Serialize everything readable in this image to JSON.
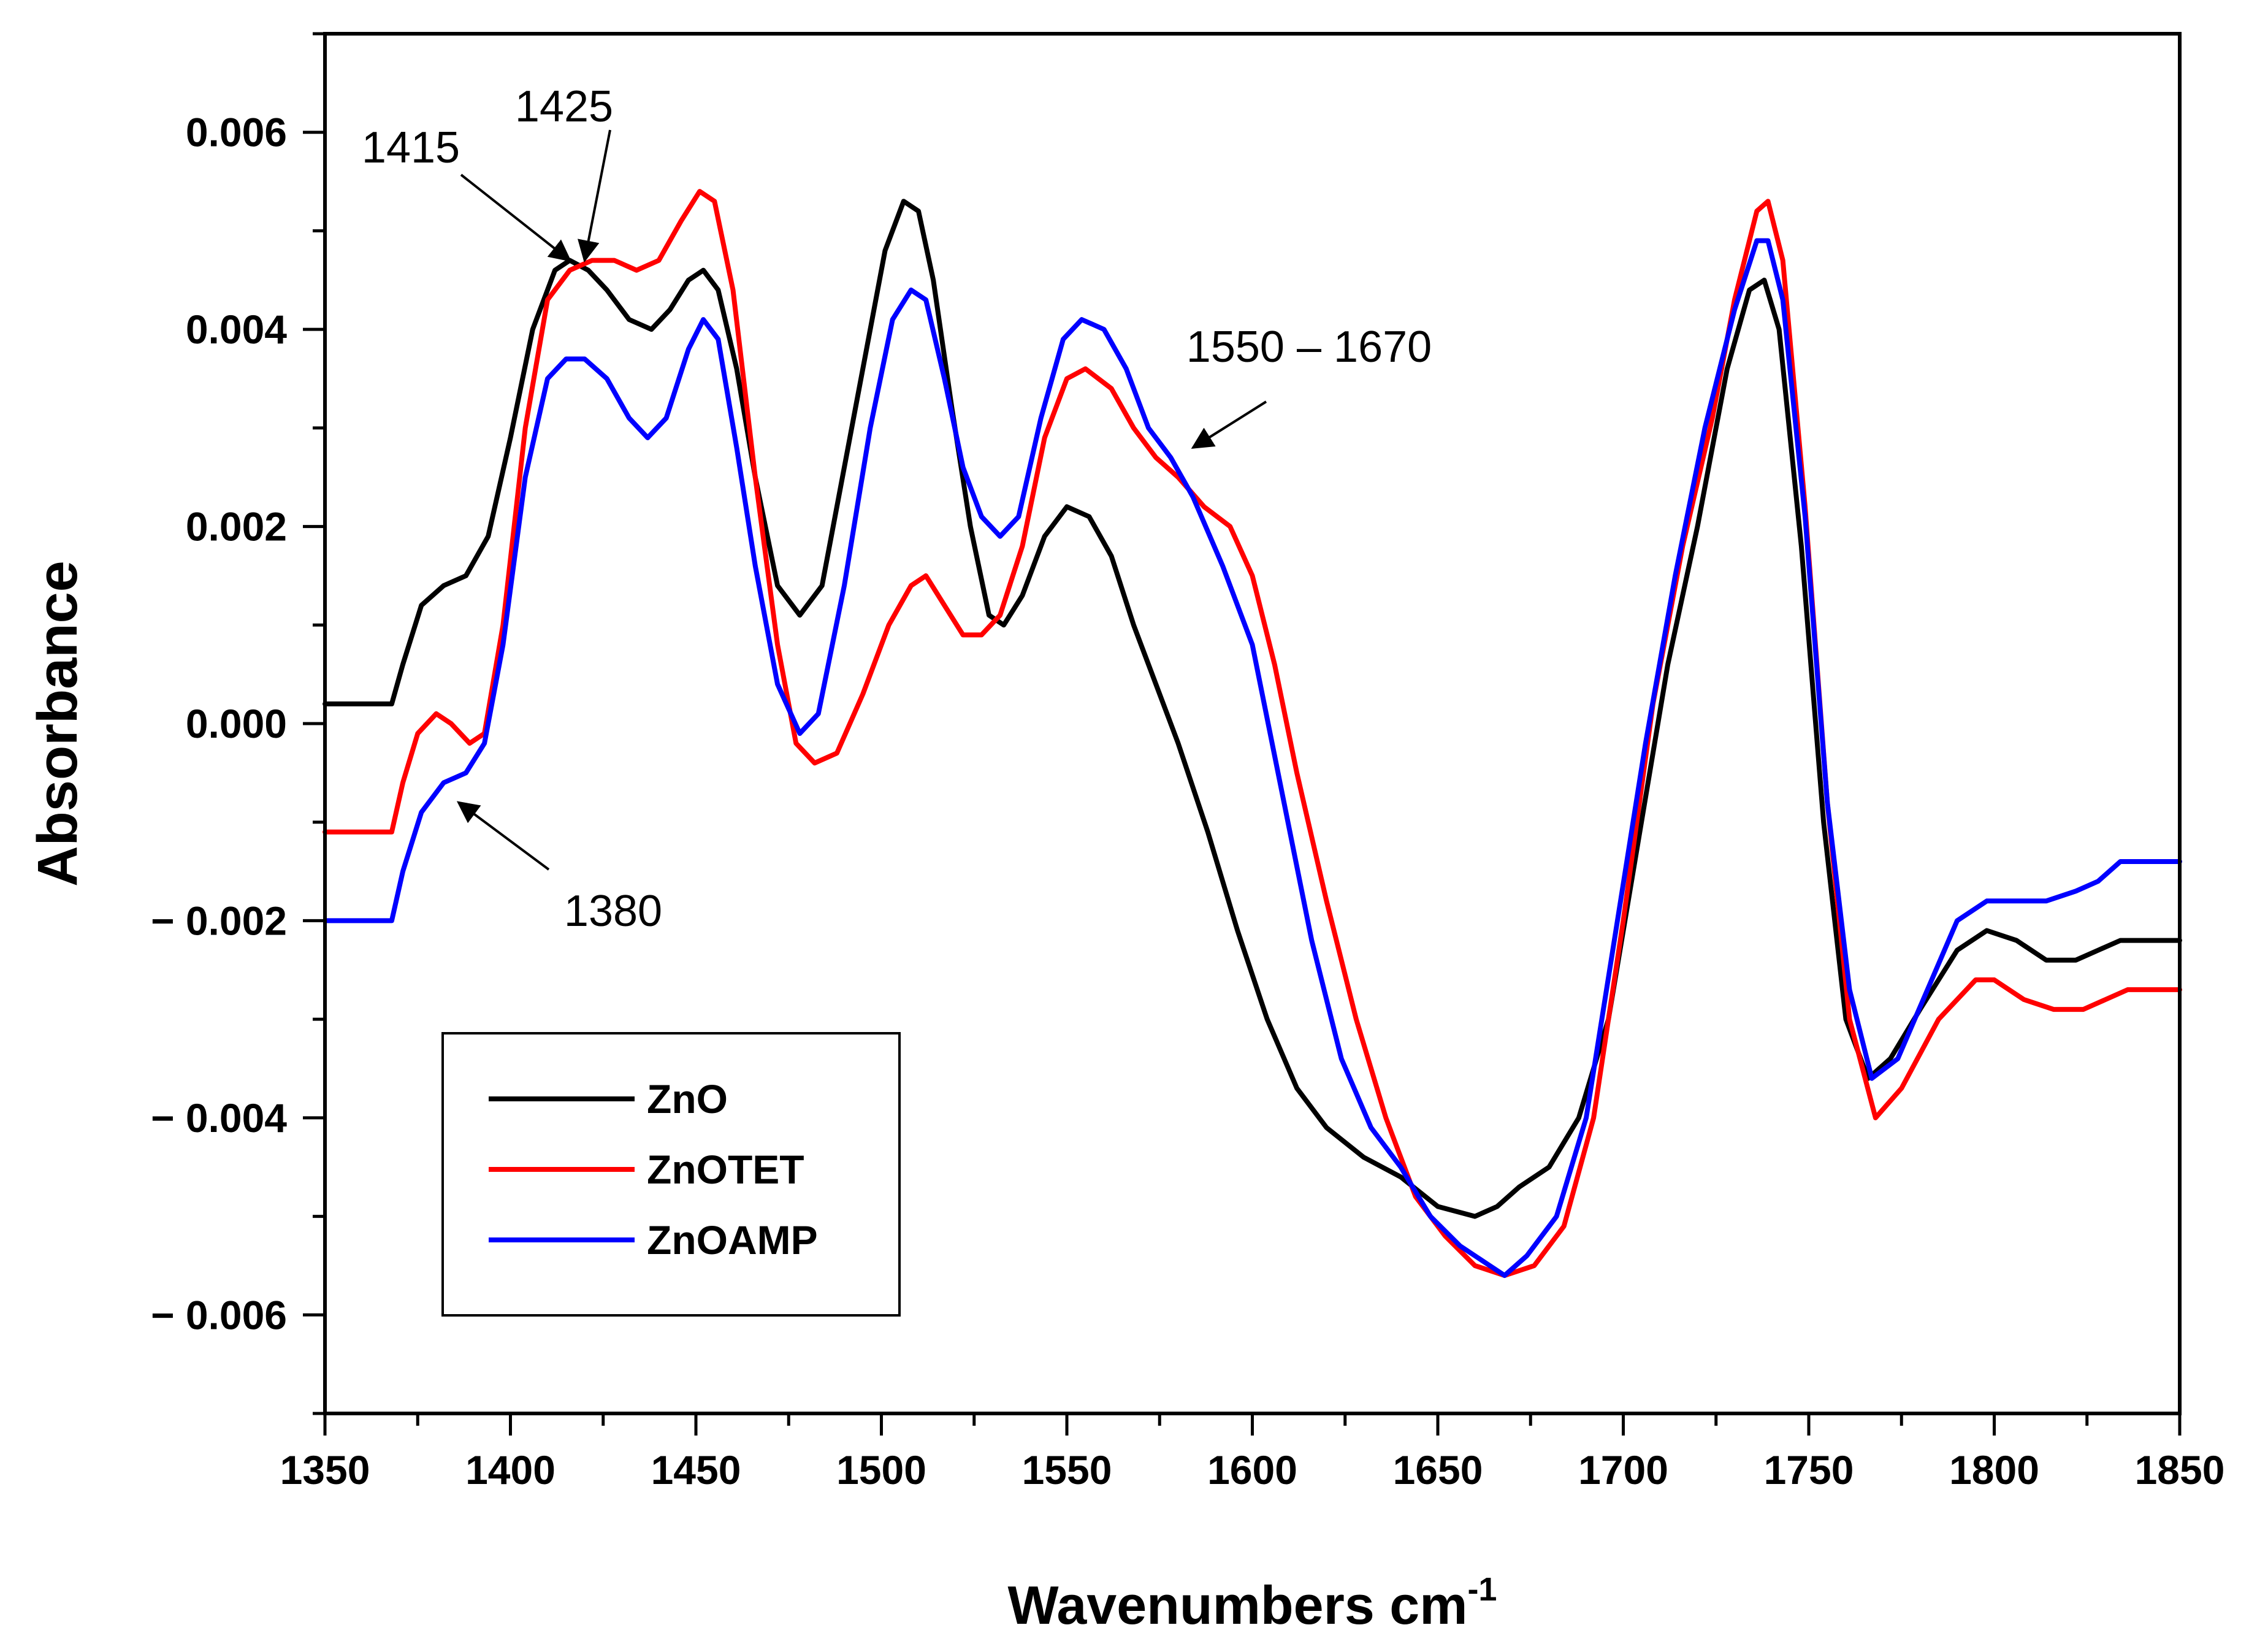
{
  "chart_data": {
    "type": "line",
    "title": "",
    "xlabel": "Wavenumbers cm",
    "xlabel_sup": "-1",
    "ylabel": "Absorbance",
    "xlim": [
      1350,
      1850
    ],
    "ylim": [
      -0.007,
      0.007
    ],
    "x_ticks": [
      1350,
      1400,
      1450,
      1500,
      1550,
      1600,
      1650,
      1700,
      1750,
      1800,
      1850
    ],
    "x_tick_labels": [
      "1350",
      "1400",
      "1450",
      "1500",
      "1550",
      "1600",
      "1650",
      "1700",
      "1750",
      "1800",
      "1850"
    ],
    "y_ticks": [
      0.006,
      0.004,
      0.002,
      0.0,
      -0.002,
      -0.004,
      -0.006
    ],
    "y_tick_labels": [
      "0.006",
      "0.004",
      "0.002",
      "0.000",
      "− 0.002",
      "− 0.004",
      "− 0.006"
    ],
    "grid": false,
    "legend_position": "bottom-left",
    "series": [
      {
        "name": "ZnO",
        "color": "#000000",
        "points": [
          [
            1350,
            0.0002
          ],
          [
            1368,
            0.0002
          ],
          [
            1371,
            0.0006
          ],
          [
            1376,
            0.0012
          ],
          [
            1382,
            0.0014
          ],
          [
            1388,
            0.0015
          ],
          [
            1394,
            0.0019
          ],
          [
            1400,
            0.0029
          ],
          [
            1406,
            0.004
          ],
          [
            1412,
            0.0046
          ],
          [
            1416,
            0.0047
          ],
          [
            1421,
            0.0046
          ],
          [
            1426,
            0.0044
          ],
          [
            1432,
            0.0041
          ],
          [
            1438,
            0.004
          ],
          [
            1443,
            0.0042
          ],
          [
            1448,
            0.0045
          ],
          [
            1452,
            0.0046
          ],
          [
            1456,
            0.0044
          ],
          [
            1461,
            0.0036
          ],
          [
            1466,
            0.0025
          ],
          [
            1472,
            0.0014
          ],
          [
            1478,
            0.0011
          ],
          [
            1484,
            0.0014
          ],
          [
            1490,
            0.0026
          ],
          [
            1496,
            0.0038
          ],
          [
            1501,
            0.0048
          ],
          [
            1506,
            0.0053
          ],
          [
            1510,
            0.0052
          ],
          [
            1514,
            0.0045
          ],
          [
            1519,
            0.0032
          ],
          [
            1524,
            0.002
          ],
          [
            1529,
            0.0011
          ],
          [
            1533,
            0.001
          ],
          [
            1538,
            0.0013
          ],
          [
            1544,
            0.0019
          ],
          [
            1550,
            0.0022
          ],
          [
            1556,
            0.0021
          ],
          [
            1562,
            0.0017
          ],
          [
            1568,
            0.001
          ],
          [
            1574,
            0.0004
          ],
          [
            1580,
            -0.0002
          ],
          [
            1588,
            -0.0011
          ],
          [
            1596,
            -0.0021
          ],
          [
            1604,
            -0.003
          ],
          [
            1612,
            -0.0037
          ],
          [
            1620,
            -0.0041
          ],
          [
            1630,
            -0.0044
          ],
          [
            1640,
            -0.0046
          ],
          [
            1650,
            -0.0049
          ],
          [
            1660,
            -0.005
          ],
          [
            1666,
            -0.0049
          ],
          [
            1672,
            -0.0047
          ],
          [
            1680,
            -0.0045
          ],
          [
            1688,
            -0.004
          ],
          [
            1696,
            -0.003
          ],
          [
            1704,
            -0.0012
          ],
          [
            1712,
            0.0006
          ],
          [
            1720,
            0.002
          ],
          [
            1728,
            0.0036
          ],
          [
            1734,
            0.0044
          ],
          [
            1738,
            0.0045
          ],
          [
            1742,
            0.004
          ],
          [
            1748,
            0.0018
          ],
          [
            1754,
            -0.001
          ],
          [
            1760,
            -0.003
          ],
          [
            1766,
            -0.0036
          ],
          [
            1772,
            -0.0034
          ],
          [
            1780,
            -0.0029
          ],
          [
            1790,
            -0.0023
          ],
          [
            1798,
            -0.0021
          ],
          [
            1806,
            -0.0022
          ],
          [
            1814,
            -0.0024
          ],
          [
            1822,
            -0.0024
          ],
          [
            1828,
            -0.0023
          ],
          [
            1834,
            -0.0022
          ],
          [
            1850,
            -0.0022
          ]
        ]
      },
      {
        "name": "ZnOTET",
        "color": "#ff0000",
        "points": [
          [
            1350,
            -0.0011
          ],
          [
            1368,
            -0.0011
          ],
          [
            1371,
            -0.0006
          ],
          [
            1375,
            -0.0001
          ],
          [
            1380,
            0.0001
          ],
          [
            1384,
            0.0
          ],
          [
            1389,
            -0.0002
          ],
          [
            1393,
            -0.0001
          ],
          [
            1398,
            0.001
          ],
          [
            1404,
            0.003
          ],
          [
            1410,
            0.0043
          ],
          [
            1416,
            0.0046
          ],
          [
            1422,
            0.0047
          ],
          [
            1428,
            0.0047
          ],
          [
            1434,
            0.0046
          ],
          [
            1440,
            0.0047
          ],
          [
            1446,
            0.0051
          ],
          [
            1451,
            0.0054
          ],
          [
            1455,
            0.0053
          ],
          [
            1460,
            0.0044
          ],
          [
            1466,
            0.0025
          ],
          [
            1472,
            0.0008
          ],
          [
            1477,
            -0.0002
          ],
          [
            1482,
            -0.0004
          ],
          [
            1488,
            -0.0003
          ],
          [
            1495,
            0.0003
          ],
          [
            1502,
            0.001
          ],
          [
            1508,
            0.0014
          ],
          [
            1512,
            0.0015
          ],
          [
            1517,
            0.0012
          ],
          [
            1522,
            0.0009
          ],
          [
            1527,
            0.0009
          ],
          [
            1532,
            0.0011
          ],
          [
            1538,
            0.0018
          ],
          [
            1544,
            0.0029
          ],
          [
            1550,
            0.0035
          ],
          [
            1555,
            0.0036
          ],
          [
            1562,
            0.0034
          ],
          [
            1568,
            0.003
          ],
          [
            1574,
            0.0027
          ],
          [
            1580,
            0.0025
          ],
          [
            1587,
            0.0022
          ],
          [
            1594,
            0.002
          ],
          [
            1600,
            0.0015
          ],
          [
            1606,
            0.0006
          ],
          [
            1612,
            -0.0005
          ],
          [
            1620,
            -0.0018
          ],
          [
            1628,
            -0.003
          ],
          [
            1636,
            -0.004
          ],
          [
            1644,
            -0.0048
          ],
          [
            1652,
            -0.0052
          ],
          [
            1660,
            -0.0055
          ],
          [
            1668,
            -0.0056
          ],
          [
            1676,
            -0.0055
          ],
          [
            1684,
            -0.0051
          ],
          [
            1692,
            -0.004
          ],
          [
            1700,
            -0.002
          ],
          [
            1708,
            0.0002
          ],
          [
            1716,
            0.0018
          ],
          [
            1724,
            0.0031
          ],
          [
            1730,
            0.0043
          ],
          [
            1736,
            0.0052
          ],
          [
            1739,
            0.0053
          ],
          [
            1743,
            0.0047
          ],
          [
            1749,
            0.0022
          ],
          [
            1755,
            -0.0008
          ],
          [
            1761,
            -0.003
          ],
          [
            1768,
            -0.004
          ],
          [
            1775,
            -0.0037
          ],
          [
            1785,
            -0.003
          ],
          [
            1795,
            -0.0026
          ],
          [
            1800,
            -0.0026
          ],
          [
            1808,
            -0.0028
          ],
          [
            1816,
            -0.0029
          ],
          [
            1824,
            -0.0029
          ],
          [
            1830,
            -0.0028
          ],
          [
            1836,
            -0.0027
          ],
          [
            1850,
            -0.0027
          ]
        ]
      },
      {
        "name": "ZnOAMP",
        "color": "#0000ff",
        "points": [
          [
            1350,
            -0.002
          ],
          [
            1368,
            -0.002
          ],
          [
            1371,
            -0.0015
          ],
          [
            1376,
            -0.0009
          ],
          [
            1382,
            -0.0006
          ],
          [
            1388,
            -0.0005
          ],
          [
            1393,
            -0.0002
          ],
          [
            1398,
            0.0008
          ],
          [
            1404,
            0.0025
          ],
          [
            1410,
            0.0035
          ],
          [
            1415,
            0.0037
          ],
          [
            1420,
            0.0037
          ],
          [
            1426,
            0.0035
          ],
          [
            1432,
            0.0031
          ],
          [
            1437,
            0.0029
          ],
          [
            1442,
            0.0031
          ],
          [
            1448,
            0.0038
          ],
          [
            1452,
            0.0041
          ],
          [
            1456,
            0.0039
          ],
          [
            1461,
            0.0028
          ],
          [
            1466,
            0.0016
          ],
          [
            1472,
            0.0004
          ],
          [
            1478,
            -0.0001
          ],
          [
            1483,
            0.0001
          ],
          [
            1490,
            0.0014
          ],
          [
            1497,
            0.003
          ],
          [
            1503,
            0.0041
          ],
          [
            1508,
            0.0044
          ],
          [
            1512,
            0.0043
          ],
          [
            1517,
            0.0035
          ],
          [
            1522,
            0.0026
          ],
          [
            1527,
            0.0021
          ],
          [
            1532,
            0.0019
          ],
          [
            1537,
            0.0021
          ],
          [
            1543,
            0.0031
          ],
          [
            1549,
            0.0039
          ],
          [
            1554,
            0.0041
          ],
          [
            1560,
            0.004
          ],
          [
            1566,
            0.0036
          ],
          [
            1572,
            0.003
          ],
          [
            1578,
            0.0027
          ],
          [
            1584,
            0.0023
          ],
          [
            1592,
            0.0016
          ],
          [
            1600,
            0.0008
          ],
          [
            1608,
            -0.0007
          ],
          [
            1616,
            -0.0022
          ],
          [
            1624,
            -0.0034
          ],
          [
            1632,
            -0.0041
          ],
          [
            1640,
            -0.0045
          ],
          [
            1648,
            -0.005
          ],
          [
            1656,
            -0.0053
          ],
          [
            1664,
            -0.0055
          ],
          [
            1668,
            -0.0056
          ],
          [
            1674,
            -0.0054
          ],
          [
            1682,
            -0.005
          ],
          [
            1690,
            -0.004
          ],
          [
            1698,
            -0.0021
          ],
          [
            1706,
            -0.0002
          ],
          [
            1714,
            0.0015
          ],
          [
            1722,
            0.003
          ],
          [
            1730,
            0.0042
          ],
          [
            1736,
            0.0049
          ],
          [
            1739,
            0.0049
          ],
          [
            1743,
            0.0043
          ],
          [
            1749,
            0.0021
          ],
          [
            1755,
            -0.0008
          ],
          [
            1761,
            -0.0027
          ],
          [
            1767,
            -0.0036
          ],
          [
            1774,
            -0.0034
          ],
          [
            1782,
            -0.0027
          ],
          [
            1790,
            -0.002
          ],
          [
            1798,
            -0.0018
          ],
          [
            1806,
            -0.0018
          ],
          [
            1814,
            -0.0018
          ],
          [
            1822,
            -0.0017
          ],
          [
            1828,
            -0.0016
          ],
          [
            1834,
            -0.0014
          ],
          [
            1850,
            -0.0014
          ]
        ]
      }
    ],
    "annotations": [
      {
        "text": "1415",
        "tip": [
          1416,
          0.0047
        ]
      },
      {
        "text": "1425",
        "tip": [
          1420,
          0.0047
        ]
      },
      {
        "text": "1380",
        "tip": [
          1386,
          -0.0008
        ]
      },
      {
        "text": "1550 – 1670",
        "tip": [
          1584,
          0.0028
        ]
      }
    ]
  }
}
